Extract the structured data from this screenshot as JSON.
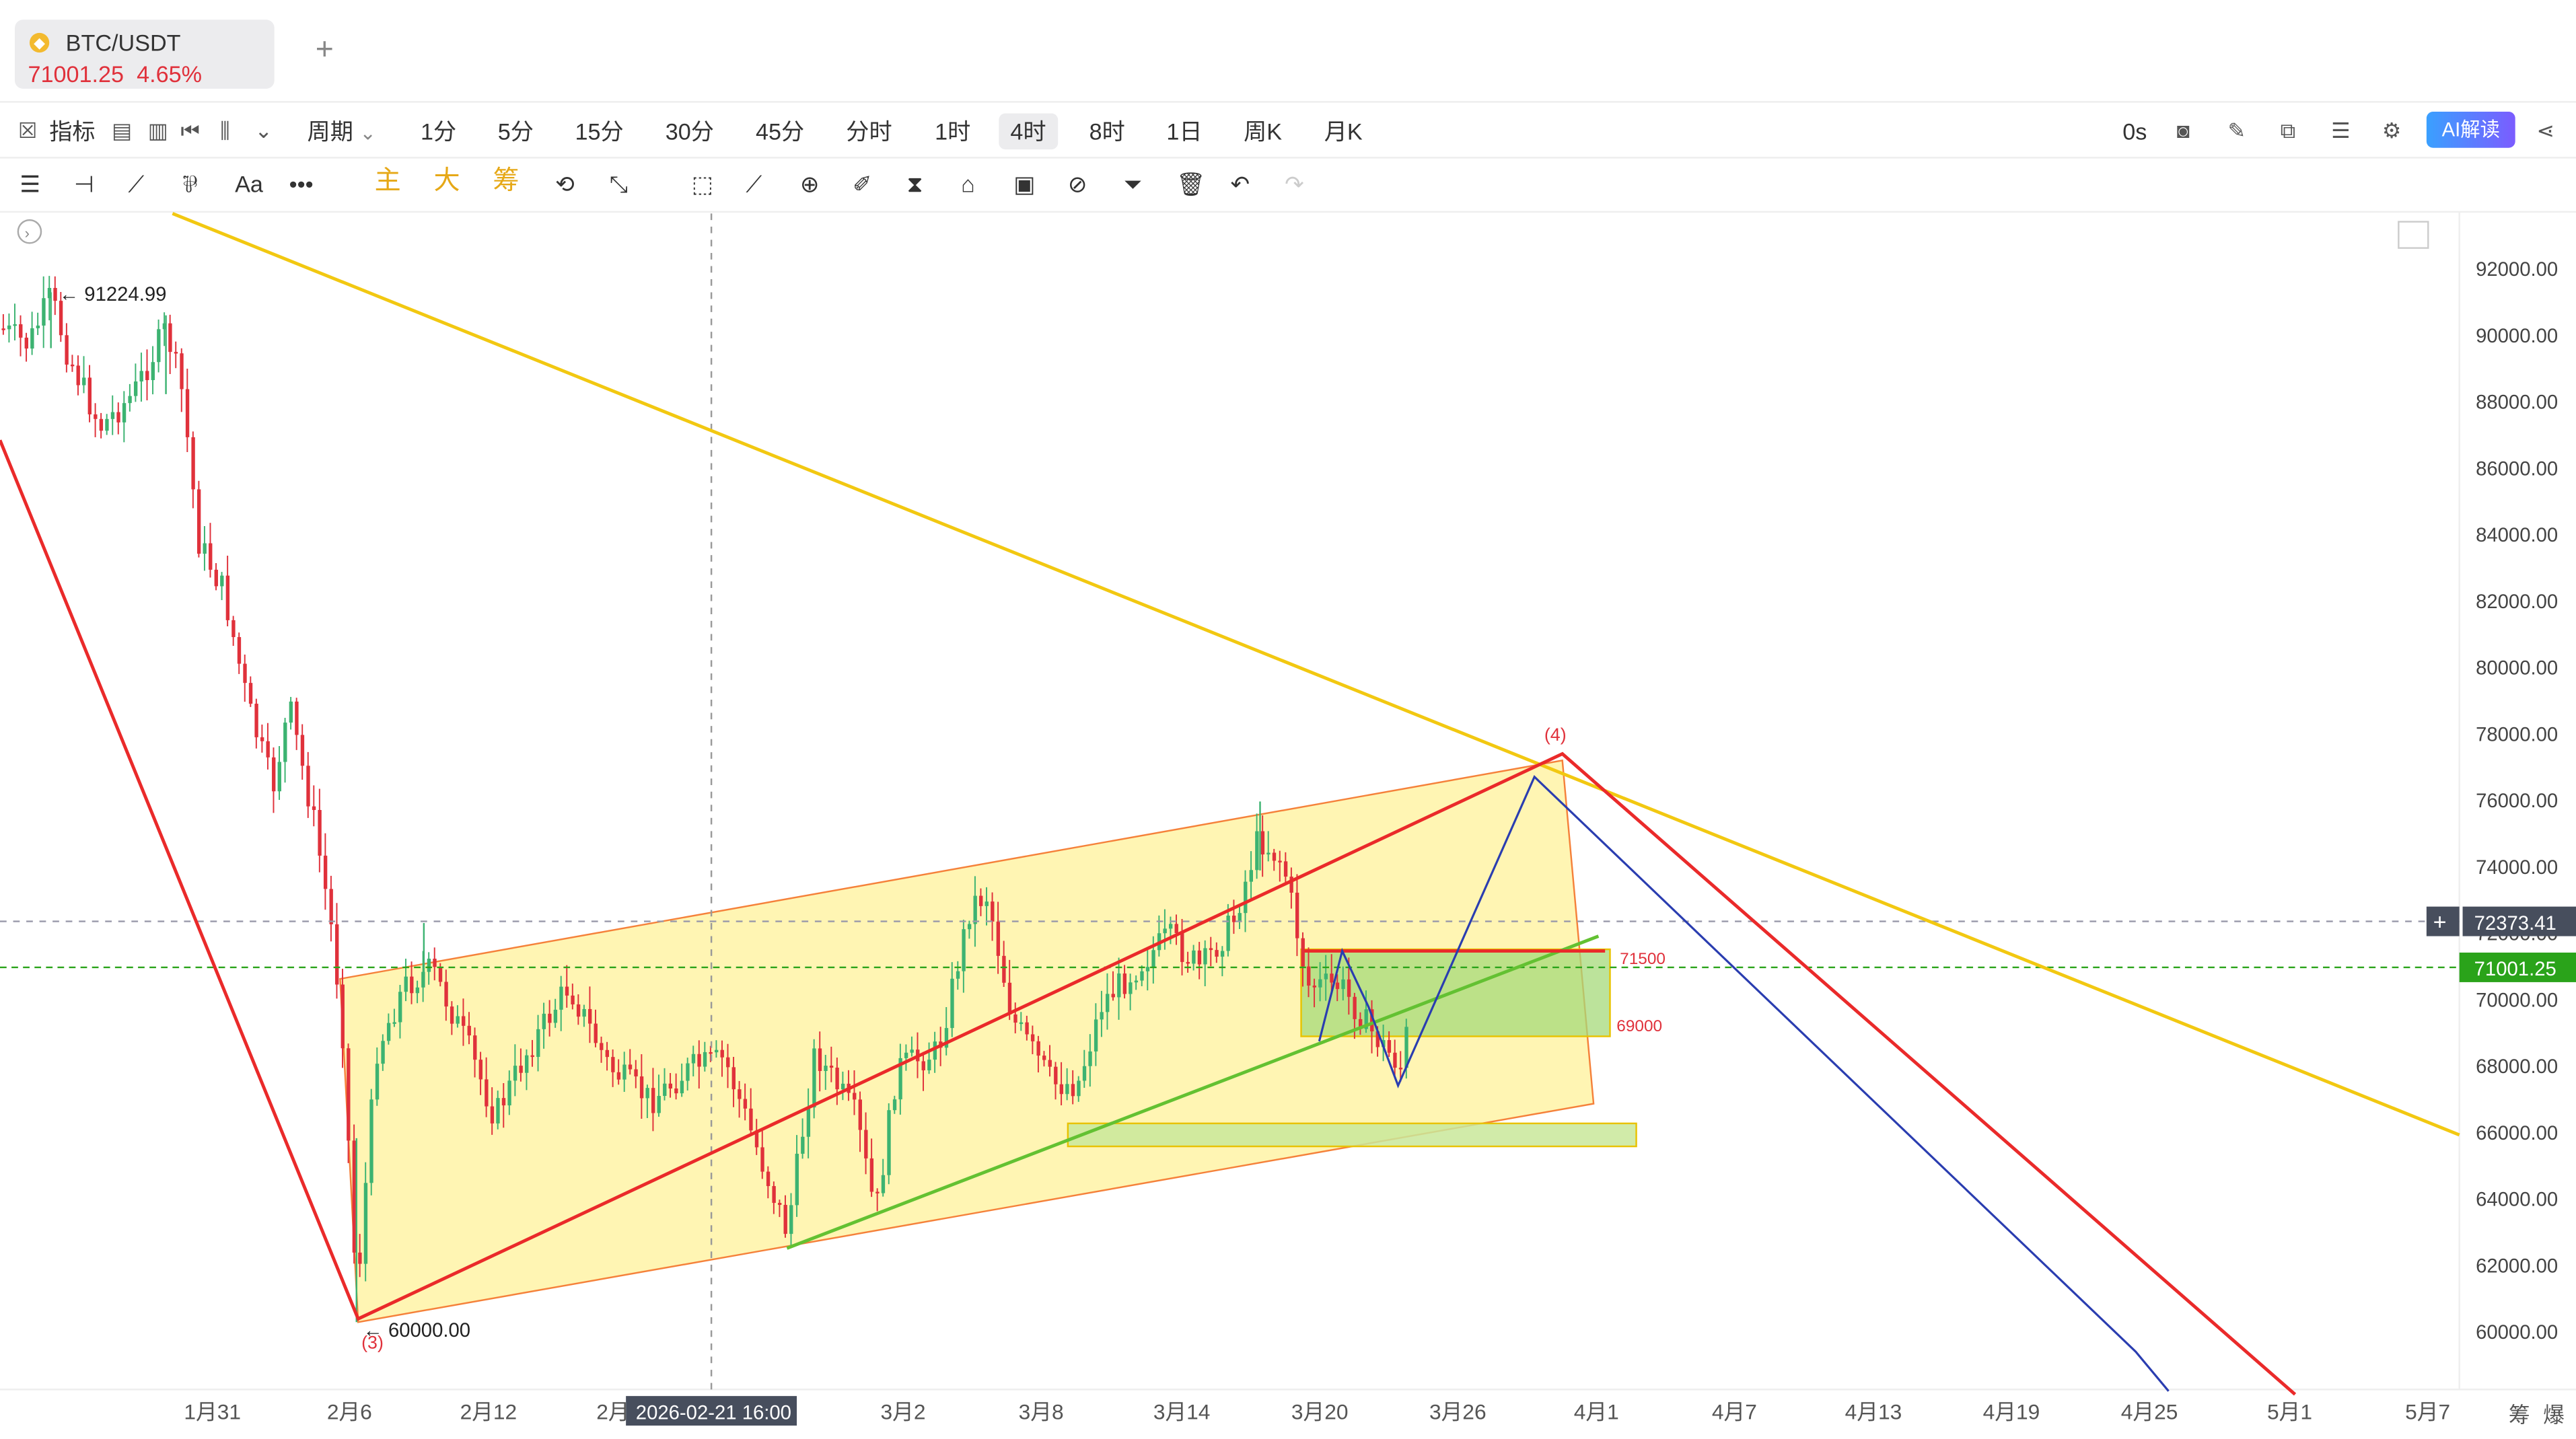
{
  "tab": {
    "symbol": "BTC/USDT",
    "price": "71001.25",
    "change": "4.65%"
  },
  "toolbar": {
    "indicators_label": "指标",
    "period_label": "周期",
    "intervals": [
      "1分",
      "5分",
      "15分",
      "30分",
      "45分",
      "分时",
      "1时",
      "4时",
      "8时",
      "1日",
      "周K",
      "月K"
    ],
    "active_interval": "4时",
    "countdown": "0s",
    "ai_label": "AI解读",
    "draw_text": [
      "主",
      "大",
      "筹"
    ],
    "font_label": "Aa"
  },
  "price_axis": {
    "ticks": [
      "92000.00",
      "90000.00",
      "88000.00",
      "86000.00",
      "84000.00",
      "82000.00",
      "80000.00",
      "78000.00",
      "76000.00",
      "74000.00",
      "72000.00",
      "70000.00",
      "68000.00",
      "66000.00",
      "64000.00",
      "62000.00",
      "60000.00"
    ],
    "crosshair_price": "72373.41",
    "last_price": "71001.25"
  },
  "time_axis": {
    "ticks": [
      "1月31",
      "2月6",
      "2月12",
      "2月",
      "3月2",
      "3月8",
      "3月14",
      "3月20",
      "3月26",
      "4月1",
      "4月7",
      "4月13",
      "4月19",
      "4月25",
      "5月1",
      "5月7"
    ],
    "crosshair_time": "2026-02-21 16:00"
  },
  "annotations": {
    "high": "91224.99",
    "low": "60000.00",
    "wave_3": "(3)",
    "wave_4": "(4)",
    "level_high": "71500",
    "level_low": "69000"
  },
  "corner_labels": [
    "筹",
    "爆"
  ],
  "colors": {
    "up": "#3cb371",
    "down": "#e0313b",
    "last_price_bg": "#2aa31a",
    "crosshair_bg": "#474e5d",
    "yellow_line": "#f2c811",
    "red_line": "#ea2a2a",
    "channel_fill": "#fff3a6",
    "channel_stroke": "#f5813a",
    "zone_fill": "#a6d97a",
    "blue_line": "#2a3db0",
    "green_line": "#63c132"
  },
  "chart_data": {
    "type": "candlestick",
    "symbol": "BTC/USDT",
    "interval": "4时",
    "ylim": [
      59000,
      93500
    ],
    "xlabel": "",
    "ylabel": "",
    "last_price": 71001.25,
    "period_high": 91224.99,
    "period_low": 60000.0,
    "price_levels": [
      71500,
      69000
    ]
  }
}
